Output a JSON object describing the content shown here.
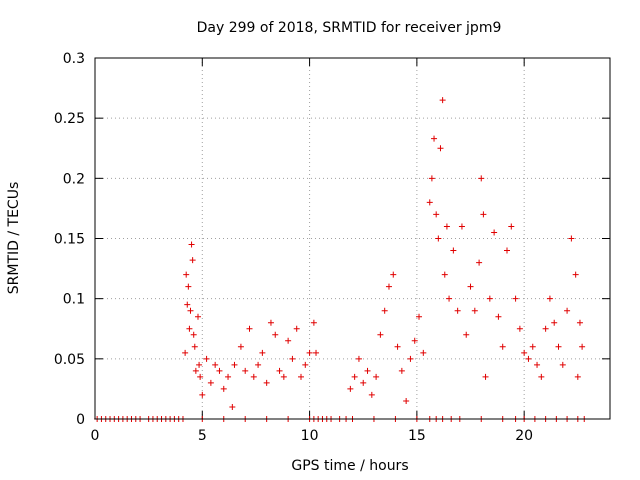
{
  "chart_data": {
    "type": "scatter",
    "title": "Day 299 of 2018, SRMTID for receiver jpm9",
    "xlabel": "GPS time / hours",
    "ylabel": "SRMTID / TECUs",
    "xlim": [
      0,
      24
    ],
    "ylim": [
      0,
      0.3
    ],
    "xticks": [
      "0",
      "5",
      "10",
      "15",
      "20"
    ],
    "yticks": [
      "0",
      "0.05",
      "0.1",
      "0.15",
      "0.2",
      "0.25",
      "0.3"
    ],
    "grid": true,
    "marker": "+",
    "series": [
      {
        "name": "SRMTID",
        "color": "#e00000",
        "zero_points_x": [
          0.1,
          0.3,
          0.5,
          0.7,
          0.9,
          1.1,
          1.3,
          1.5,
          1.7,
          1.9,
          2.1,
          2.5,
          2.7,
          2.9,
          3.1,
          3.3,
          3.5,
          3.7,
          3.9,
          4.1,
          5.0,
          6.0,
          7.0,
          8.0,
          9.0,
          10.0,
          10.2,
          10.4,
          10.6,
          10.8,
          11.0,
          11.4,
          11.7,
          12.0,
          13.0,
          14.0,
          15.0,
          15.6,
          15.9,
          16.2,
          16.6,
          17.0,
          18.0,
          19.0,
          19.6,
          20.0,
          20.5,
          21.0,
          21.5,
          22.0,
          22.5,
          22.8
        ],
        "points": [
          [
            4.2,
            0.055
          ],
          [
            4.25,
            0.12
          ],
          [
            4.3,
            0.095
          ],
          [
            4.35,
            0.11
          ],
          [
            4.4,
            0.075
          ],
          [
            4.45,
            0.09
          ],
          [
            4.5,
            0.145
          ],
          [
            4.55,
            0.132
          ],
          [
            4.6,
            0.07
          ],
          [
            4.65,
            0.06
          ],
          [
            4.7,
            0.04
          ],
          [
            4.8,
            0.085
          ],
          [
            4.85,
            0.045
          ],
          [
            4.9,
            0.035
          ],
          [
            5.0,
            0.02
          ],
          [
            5.2,
            0.05
          ],
          [
            5.4,
            0.03
          ],
          [
            5.6,
            0.045
          ],
          [
            5.8,
            0.04
          ],
          [
            6.0,
            0.025
          ],
          [
            6.2,
            0.035
          ],
          [
            6.4,
            0.01
          ],
          [
            6.5,
            0.045
          ],
          [
            6.8,
            0.06
          ],
          [
            7.0,
            0.04
          ],
          [
            7.2,
            0.075
          ],
          [
            7.4,
            0.035
          ],
          [
            7.6,
            0.045
          ],
          [
            7.8,
            0.055
          ],
          [
            8.0,
            0.03
          ],
          [
            8.2,
            0.08
          ],
          [
            8.4,
            0.07
          ],
          [
            8.6,
            0.04
          ],
          [
            8.8,
            0.035
          ],
          [
            9.0,
            0.065
          ],
          [
            9.2,
            0.05
          ],
          [
            9.4,
            0.075
          ],
          [
            9.6,
            0.035
          ],
          [
            9.8,
            0.045
          ],
          [
            10.0,
            0.055
          ],
          [
            10.2,
            0.08
          ],
          [
            10.3,
            0.055
          ],
          [
            11.9,
            0.025
          ],
          [
            12.1,
            0.035
          ],
          [
            12.3,
            0.05
          ],
          [
            12.5,
            0.03
          ],
          [
            12.7,
            0.04
          ],
          [
            12.9,
            0.02
          ],
          [
            13.1,
            0.035
          ],
          [
            13.3,
            0.07
          ],
          [
            13.5,
            0.09
          ],
          [
            13.7,
            0.11
          ],
          [
            13.9,
            0.12
          ],
          [
            14.1,
            0.06
          ],
          [
            14.3,
            0.04
          ],
          [
            14.5,
            0.015
          ],
          [
            14.7,
            0.05
          ],
          [
            14.9,
            0.065
          ],
          [
            15.1,
            0.085
          ],
          [
            15.3,
            0.055
          ],
          [
            15.6,
            0.18
          ],
          [
            15.7,
            0.2
          ],
          [
            15.8,
            0.233
          ],
          [
            15.9,
            0.17
          ],
          [
            16.0,
            0.15
          ],
          [
            16.1,
            0.225
          ],
          [
            16.2,
            0.265
          ],
          [
            16.3,
            0.12
          ],
          [
            16.4,
            0.16
          ],
          [
            16.5,
            0.1
          ],
          [
            16.7,
            0.14
          ],
          [
            16.9,
            0.09
          ],
          [
            17.1,
            0.16
          ],
          [
            17.3,
            0.07
          ],
          [
            17.5,
            0.11
          ],
          [
            17.7,
            0.09
          ],
          [
            17.9,
            0.13
          ],
          [
            18.0,
            0.2
          ],
          [
            18.1,
            0.17
          ],
          [
            18.2,
            0.035
          ],
          [
            18.4,
            0.1
          ],
          [
            18.6,
            0.155
          ],
          [
            18.8,
            0.085
          ],
          [
            19.0,
            0.06
          ],
          [
            19.2,
            0.14
          ],
          [
            19.4,
            0.16
          ],
          [
            19.6,
            0.1
          ],
          [
            19.8,
            0.075
          ],
          [
            20.0,
            0.055
          ],
          [
            20.2,
            0.05
          ],
          [
            20.4,
            0.06
          ],
          [
            20.6,
            0.045
          ],
          [
            20.8,
            0.035
          ],
          [
            21.0,
            0.075
          ],
          [
            21.2,
            0.1
          ],
          [
            21.4,
            0.08
          ],
          [
            21.6,
            0.06
          ],
          [
            21.8,
            0.045
          ],
          [
            22.0,
            0.09
          ],
          [
            22.2,
            0.15
          ],
          [
            22.4,
            0.12
          ],
          [
            22.5,
            0.035
          ],
          [
            22.6,
            0.08
          ],
          [
            22.7,
            0.06
          ]
        ]
      }
    ]
  }
}
